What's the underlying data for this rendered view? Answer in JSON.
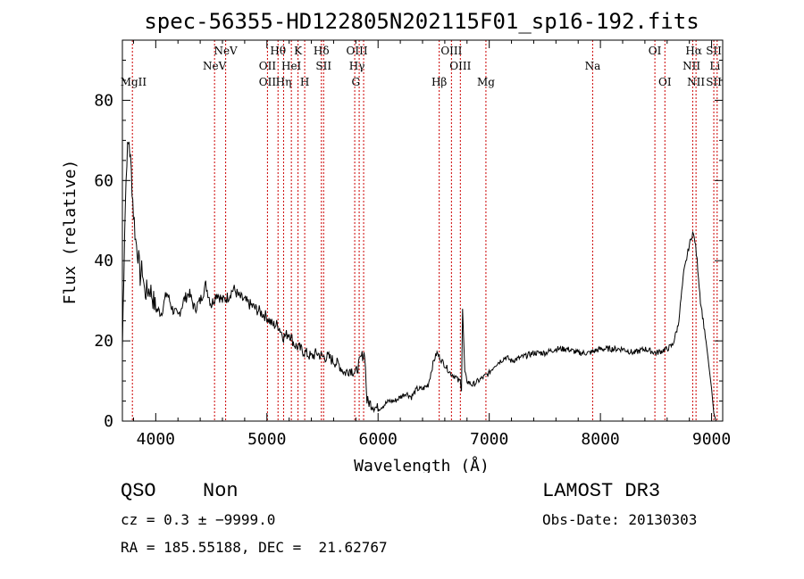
{
  "chart_data": {
    "type": "line",
    "title": "spec-56355-HD122805N202115F01_sp16-192.fits",
    "xlabel": "Wavelength (Å)",
    "ylabel": "Flux (relative)",
    "xlim": [
      3700,
      9100
    ],
    "ylim": [
      0,
      95
    ],
    "xticks": [
      4000,
      5000,
      6000,
      7000,
      8000,
      9000
    ],
    "yticks": [
      0,
      20,
      40,
      60,
      80
    ],
    "grid": false,
    "series": [
      {
        "x": [
          3700,
          3720,
          3740,
          3760,
          3780,
          3800,
          3820,
          3840,
          3860,
          3880,
          3900,
          3950,
          4000,
          4050,
          4100,
          4150,
          4200,
          4250,
          4300,
          4350,
          4400,
          4450,
          4500,
          4550,
          4600,
          4650,
          4700,
          4750,
          4800,
          4850,
          4900,
          4950,
          5000,
          5050,
          5100,
          5150,
          5200,
          5250,
          5300,
          5350,
          5400,
          5450,
          5500,
          5550,
          5600,
          5650,
          5700,
          5750,
          5800,
          5850,
          5880,
          5900,
          5950,
          6000,
          6050,
          6100,
          6150,
          6200,
          6250,
          6300,
          6350,
          6400,
          6450,
          6500,
          6530,
          6550,
          6600,
          6650,
          6700,
          6720,
          6740,
          6750,
          6760,
          6780,
          6800,
          6850,
          6900,
          6950,
          7000,
          7050,
          7100,
          7150,
          7200,
          7300,
          7400,
          7500,
          7600,
          7700,
          7800,
          7900,
          8000,
          8100,
          8200,
          8300,
          8400,
          8500,
          8600,
          8650,
          8700,
          8750,
          8800,
          8830,
          8850,
          8870,
          8900,
          8950,
          9000,
          9020,
          9040,
          9050
        ],
        "y": [
          18,
          48,
          66,
          70,
          62,
          52,
          45,
          42,
          36,
          38,
          32,
          33,
          28,
          27,
          32,
          28,
          26,
          30,
          32,
          28,
          30,
          34,
          29,
          32,
          30,
          31,
          33,
          31,
          30,
          29,
          28,
          27,
          26,
          24,
          24,
          21,
          22,
          19,
          18,
          17,
          16,
          17,
          16,
          16,
          15,
          14,
          12,
          13,
          12,
          16,
          17,
          5,
          4,
          3,
          4,
          5,
          5,
          6,
          7,
          6,
          8,
          8,
          9,
          15,
          17,
          16,
          14,
          12,
          11,
          10,
          10,
          8,
          28,
          12,
          10,
          9,
          10,
          11,
          12,
          14,
          15,
          16,
          15,
          16,
          17,
          17,
          18,
          18,
          17,
          17,
          18,
          18,
          18,
          17,
          18,
          17,
          18,
          19,
          24,
          37,
          44,
          47,
          45,
          40,
          30,
          20,
          8,
          2,
          0,
          0
        ]
      }
    ],
    "annotations": [
      {
        "label": "MgII",
        "x": 3800,
        "row": 3
      },
      {
        "label": "NeV",
        "x": 4529,
        "row": 2
      },
      {
        "label": "NeV",
        "x": 4629,
        "row": 1
      },
      {
        "label": "OII",
        "x": 5005,
        "row": 2
      },
      {
        "label": "OII",
        "x": 5005,
        "row": 3
      },
      {
        "label": "Hθ",
        "x": 5100,
        "row": 1
      },
      {
        "label": "Hη",
        "x": 5150,
        "row": 3
      },
      {
        "label": "HeI",
        "x": 5220,
        "row": 2
      },
      {
        "label": "K",
        "x": 5280,
        "row": 1
      },
      {
        "label": "H",
        "x": 5340,
        "row": 3
      },
      {
        "label": "Hδ",
        "x": 5490,
        "row": 1
      },
      {
        "label": "SII",
        "x": 5510,
        "row": 2
      },
      {
        "label": "OIII",
        "x": 5810,
        "row": 1
      },
      {
        "label": "Hγ",
        "x": 5810,
        "row": 2
      },
      {
        "label": "G",
        "x": 5800,
        "row": 3
      },
      {
        "label": "Hβ",
        "x": 6550,
        "row": 3
      },
      {
        "label": "OIII",
        "x": 6660,
        "row": 1
      },
      {
        "label": "OIII",
        "x": 6740,
        "row": 2
      },
      {
        "label": "Mg",
        "x": 6970,
        "row": 3
      },
      {
        "label": "Na",
        "x": 7930,
        "row": 2
      },
      {
        "label": "OI",
        "x": 8490,
        "row": 1
      },
      {
        "label": "OI",
        "x": 8580,
        "row": 3
      },
      {
        "label": "Hα",
        "x": 8840,
        "row": 1
      },
      {
        "label": "NII",
        "x": 8820,
        "row": 2
      },
      {
        "label": "NII",
        "x": 8860,
        "row": 3
      },
      {
        "label": "SII",
        "x": 9020,
        "row": 1
      },
      {
        "label": "Li",
        "x": 9030,
        "row": 2
      },
      {
        "label": "SII",
        "x": 9020,
        "row": 3
      }
    ],
    "line_positions": [
      3790,
      4529,
      4629,
      5005,
      5100,
      5150,
      5220,
      5280,
      5340,
      5490,
      5510,
      5790,
      5830,
      5870,
      6550,
      6660,
      6740,
      6970,
      7930,
      8490,
      8580,
      8830,
      8860,
      9020,
      9050
    ]
  },
  "info": {
    "class": "QSO",
    "subclass": "Non",
    "survey": "LAMOST DR3",
    "cz": "cz = 0.3 ± −9999.0",
    "obs_date": "Obs-Date: 20130303",
    "coords": "RA = 185.55188, DEC =  21.62767"
  },
  "colors": {
    "line_marker": "#cc0000",
    "spectrum": "#000000"
  }
}
